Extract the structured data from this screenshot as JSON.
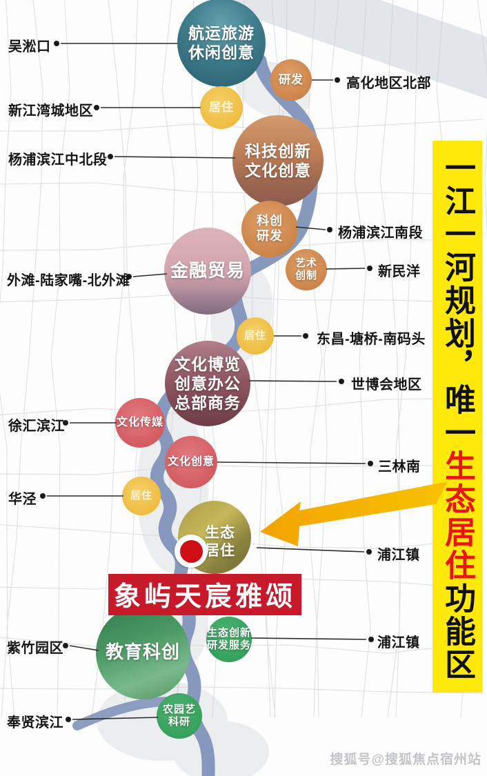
{
  "title_banner": {
    "black_part_1": "一江一河规划，唯一",
    "red_part": "生态居住",
    "black_part_2": "功能区",
    "bg_color": "#FFE90A",
    "red_color": "#E81510"
  },
  "project_banner": {
    "label": "象屿天宸雅颂",
    "bg_color": "#C8192B"
  },
  "watermark": {
    "text": "搜狐号@搜狐焦点宿州站"
  },
  "left_labels": [
    {
      "text": "吴淞口"
    },
    {
      "text": "新江湾城地区"
    },
    {
      "text": "杨浦滨江中北段"
    },
    {
      "text": "外滩-陆家嘴-北外滩"
    },
    {
      "text": "徐汇滨江"
    },
    {
      "text": "华泾"
    },
    {
      "text": "紫竹园区"
    },
    {
      "text": "奉贤滨江"
    }
  ],
  "right_labels": [
    {
      "text": "高化地区北部"
    },
    {
      "text": "杨浦滨江南段"
    },
    {
      "text": "新民洋"
    },
    {
      "text": "东昌-塘桥-南码头"
    },
    {
      "text": "世博会地区"
    },
    {
      "text": "三林南"
    },
    {
      "text": "浦江镇"
    },
    {
      "text": "浦江镇"
    }
  ],
  "zones": [
    {
      "id": "hangyun",
      "label": "航运旅游\n休闲创意",
      "style": "photo-teal"
    },
    {
      "id": "yanfa",
      "label": "研发",
      "style": "orange"
    },
    {
      "id": "juzhu-1",
      "label": "居住",
      "style": "yellow"
    },
    {
      "id": "keji",
      "label": "科技创新\n文化创意",
      "style": "photo-warm"
    },
    {
      "id": "kechuang",
      "label": "科创\n研发",
      "style": "orange"
    },
    {
      "id": "yishu",
      "label": "艺术\n创制",
      "style": "orange"
    },
    {
      "id": "jinrong",
      "label": "金融贸易",
      "style": "photo-pink"
    },
    {
      "id": "juzhu-2",
      "label": "居住",
      "style": "yellow"
    },
    {
      "id": "wenbo",
      "label": "文化博览\n创意办公\n总部商务",
      "style": "photo-maroon"
    },
    {
      "id": "chuanmei",
      "label": "文化传媒",
      "style": "red"
    },
    {
      "id": "wenchuang",
      "label": "文化创意",
      "style": "red"
    },
    {
      "id": "juzhu-3",
      "label": "居住",
      "style": "yellow"
    },
    {
      "id": "shengtai",
      "label": "生态\n居住",
      "style": "photo-olive"
    },
    {
      "id": "jiaoyu",
      "label": "教育科创",
      "style": "photo-green"
    },
    {
      "id": "shengchuang",
      "label": "生态创新\n研发服务",
      "style": "green"
    },
    {
      "id": "nongyuan",
      "label": "农园艺\n科研",
      "style": "green"
    }
  ],
  "colors": {
    "river": "#8294BA",
    "arrow": "#F5AE00",
    "orange_circle": "#C9834C",
    "yellow_circle": "#F1C344",
    "red_circle": "#D5595E",
    "green_circle": "#33A35C"
  }
}
